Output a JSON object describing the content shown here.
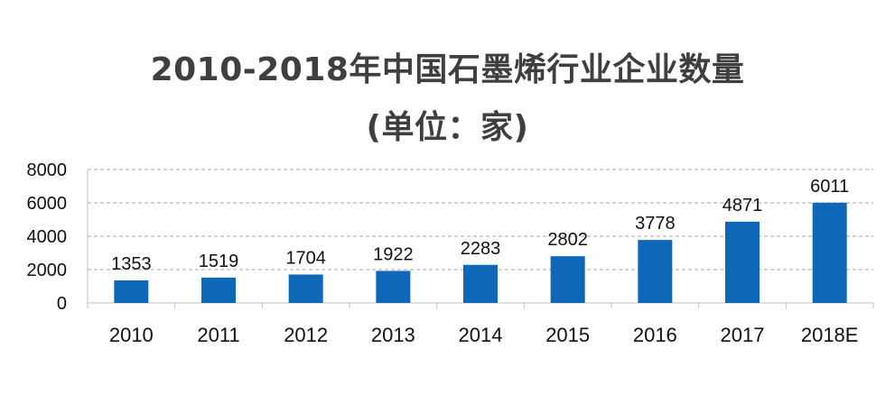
{
  "chart_data": {
    "type": "bar",
    "title": "2010-2018年中国石墨烯行业企业数量",
    "subtitle": "(单位：家)",
    "categories": [
      "2010",
      "2011",
      "2012",
      "2013",
      "2014",
      "2015",
      "2016",
      "2017",
      "2018E"
    ],
    "values": [
      1353,
      1519,
      1704,
      1922,
      2283,
      2802,
      3778,
      4871,
      6011
    ],
    "ylim": [
      0,
      8000
    ],
    "yticks": [
      0,
      2000,
      4000,
      6000,
      8000
    ],
    "xlabel": "",
    "ylabel": "",
    "grid": true,
    "data_labels": true,
    "bar_color": "#0f67b8",
    "grid_color": "#a6a6a6"
  }
}
